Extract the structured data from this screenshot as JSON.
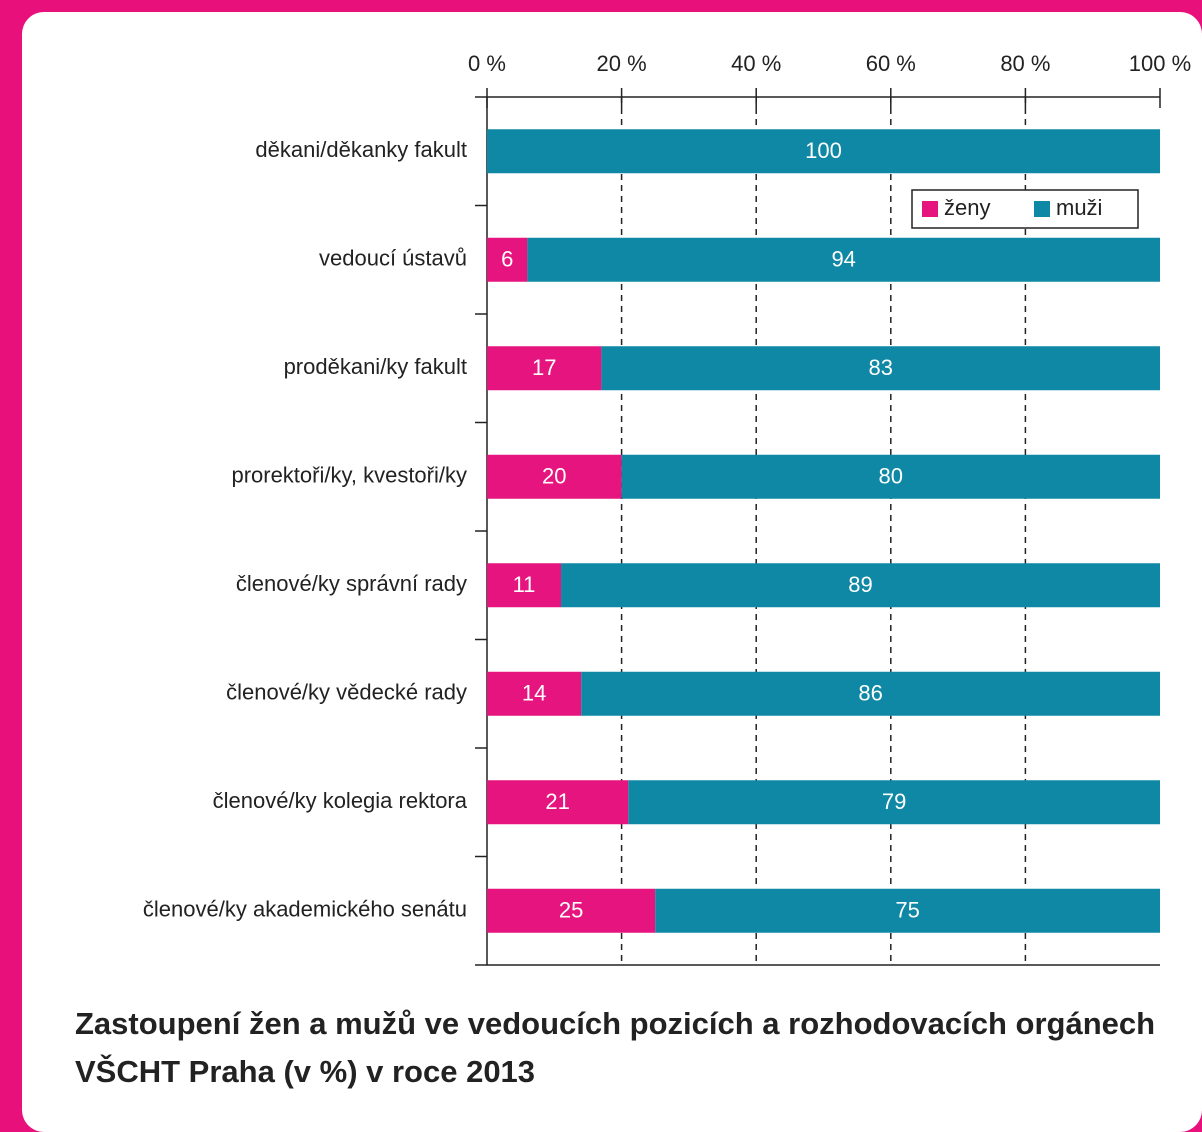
{
  "chart_data": {
    "type": "stacked_barh",
    "title": "Zastoupení žen a mužů ve vedoucích pozicích a rozhodovacích orgánech VŠCHT Praha (v %) v roce 2013",
    "categories": [
      "děkani/děkanky fakult",
      "vedoucí ústavů",
      "proděkani/ky fakult",
      "prorektoři/ky, kvestoři/ky",
      "členové/ky správní rady",
      "členové/ky vědecké rady",
      "členové/ky kolegia rektora",
      "členové/ky akademického senátu"
    ],
    "series": [
      {
        "name": "ženy",
        "color": "#e6147e",
        "values": [
          0,
          6,
          17,
          20,
          11,
          14,
          21,
          25
        ]
      },
      {
        "name": "muži",
        "color": "#0e88a4",
        "values": [
          100,
          94,
          83,
          80,
          89,
          86,
          79,
          75
        ]
      }
    ],
    "xlim": [
      0,
      100
    ],
    "xticks": [
      {
        "value": 0,
        "label": "0 %"
      },
      {
        "value": 20,
        "label": "20 %"
      },
      {
        "value": 40,
        "label": "40 %"
      },
      {
        "value": 60,
        "label": "60 %"
      },
      {
        "value": 80,
        "label": "80 %"
      },
      {
        "value": 100,
        "label": "100 %"
      }
    ],
    "grid": true,
    "legend": "upper right"
  }
}
